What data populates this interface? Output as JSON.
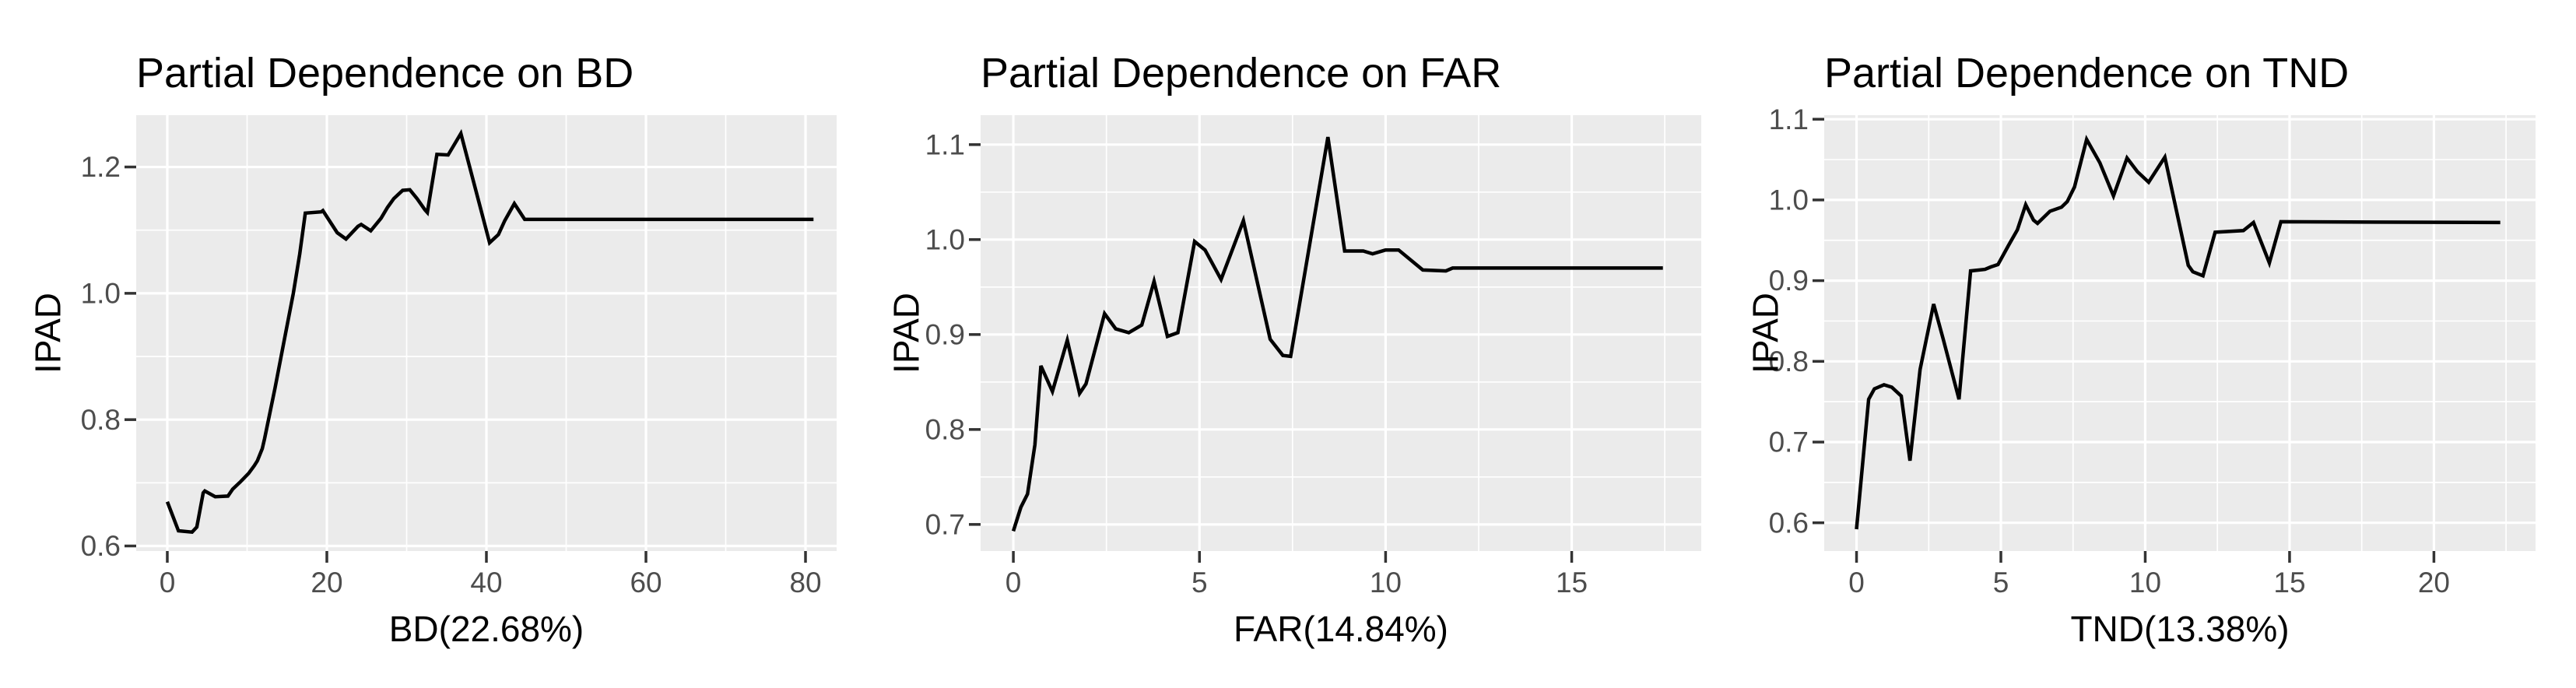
{
  "page": {
    "background": "#FFFFFF"
  },
  "style": {
    "panel_bg": "#EBEBEB",
    "grid_color": "#FFFFFF",
    "line_color": "#000000",
    "tick_color": "#333333",
    "tick_label_color": "#4D4D4D",
    "title_color": "#000000"
  },
  "chart_data": [
    {
      "type": "line",
      "title": "Partial Dependence on BD",
      "xlabel": "BD(22.68%)",
      "ylabel": "IPAD",
      "legend": "none",
      "grid": "on",
      "xlim": [
        -3.9,
        83.9
      ],
      "ylim": [
        0.592,
        1.282
      ],
      "x_ticks": [
        0,
        20,
        40,
        60,
        80
      ],
      "x_tick_labels": [
        "0",
        "20",
        "40",
        "60",
        "80"
      ],
      "x_minor": [
        10,
        30,
        50,
        70
      ],
      "y_ticks": [
        0.6,
        0.8,
        1.0,
        1.2
      ],
      "y_tick_labels": [
        "0.6",
        "0.8",
        "1.0",
        "1.2"
      ],
      "y_minor": [
        0.7,
        0.9,
        1.1
      ],
      "series": [
        {
          "name": "IPAD",
          "points": [
            [
              0,
              0.67
            ],
            [
              1.4,
              0.624
            ],
            [
              3.1,
              0.622
            ],
            [
              3.7,
              0.63
            ],
            [
              4.5,
              0.684
            ],
            [
              4.7,
              0.687
            ],
            [
              6.0,
              0.678
            ],
            [
              7.6,
              0.679
            ],
            [
              8.2,
              0.69
            ],
            [
              9.2,
              0.702
            ],
            [
              10.2,
              0.715
            ],
            [
              10.9,
              0.727
            ],
            [
              11.3,
              0.735
            ],
            [
              11.9,
              0.754
            ],
            [
              12.2,
              0.77
            ],
            [
              13.5,
              0.85
            ],
            [
              14.8,
              0.935
            ],
            [
              15.8,
              1.0
            ],
            [
              16.6,
              1.062
            ],
            [
              17.3,
              1.127
            ],
            [
              19.3,
              1.129
            ],
            [
              19.5,
              1.131
            ],
            [
              21.3,
              1.096
            ],
            [
              22.4,
              1.086
            ],
            [
              23.9,
              1.106
            ],
            [
              24.3,
              1.109
            ],
            [
              25.5,
              1.099
            ],
            [
              26.8,
              1.119
            ],
            [
              27.6,
              1.136
            ],
            [
              28.4,
              1.15
            ],
            [
              29.5,
              1.163
            ],
            [
              30.4,
              1.164
            ],
            [
              31.3,
              1.15
            ],
            [
              32.3,
              1.132
            ],
            [
              32.6,
              1.128
            ],
            [
              33.8,
              1.22
            ],
            [
              35.2,
              1.219
            ],
            [
              36.8,
              1.253
            ],
            [
              40.4,
              1.08
            ],
            [
              41.5,
              1.093
            ],
            [
              42.3,
              1.115
            ],
            [
              43.5,
              1.142
            ],
            [
              44.8,
              1.117
            ],
            [
              60,
              1.117
            ],
            [
              81,
              1.117
            ]
          ]
        }
      ]
    },
    {
      "type": "line",
      "title": "Partial Dependence on FAR",
      "xlabel": "FAR(14.84%)",
      "ylabel": "IPAD",
      "legend": "none",
      "grid": "on",
      "xlim": [
        -0.88,
        18.48
      ],
      "ylim": [
        0.672,
        1.131
      ],
      "x_ticks": [
        0,
        5,
        10,
        15
      ],
      "x_tick_labels": [
        "0",
        "5",
        "10",
        "15"
      ],
      "x_minor": [
        2.5,
        7.5,
        12.5,
        17.5
      ],
      "y_ticks": [
        0.7,
        0.8,
        0.9,
        1.0,
        1.1
      ],
      "y_tick_labels": [
        "0.7",
        "0.8",
        "0.9",
        "1.0",
        "1.1"
      ],
      "y_minor": [
        0.75,
        0.85,
        0.95,
        1.05
      ],
      "series": [
        {
          "name": "IPAD",
          "points": [
            [
              0,
              0.693
            ],
            [
              0.2,
              0.718
            ],
            [
              0.38,
              0.732
            ],
            [
              0.58,
              0.784
            ],
            [
              0.74,
              0.867
            ],
            [
              1.05,
              0.84
            ],
            [
              1.45,
              0.894
            ],
            [
              1.78,
              0.838
            ],
            [
              1.95,
              0.848
            ],
            [
              2.45,
              0.922
            ],
            [
              2.75,
              0.906
            ],
            [
              3.1,
              0.902
            ],
            [
              3.45,
              0.91
            ],
            [
              3.78,
              0.956
            ],
            [
              4.14,
              0.898
            ],
            [
              4.42,
              0.902
            ],
            [
              4.87,
              0.998
            ],
            [
              5.15,
              0.989
            ],
            [
              5.58,
              0.958
            ],
            [
              6.18,
              1.02
            ],
            [
              6.9,
              0.895
            ],
            [
              7.24,
              0.878
            ],
            [
              7.45,
              0.877
            ],
            [
              8.45,
              1.108
            ],
            [
              8.9,
              0.988
            ],
            [
              9.4,
              0.988
            ],
            [
              9.65,
              0.985
            ],
            [
              10.0,
              0.989
            ],
            [
              10.35,
              0.989
            ],
            [
              11.0,
              0.968
            ],
            [
              11.62,
              0.967
            ],
            [
              11.8,
              0.97
            ],
            [
              12.1,
              0.97
            ],
            [
              17.45,
              0.97
            ]
          ]
        }
      ]
    },
    {
      "type": "line",
      "title": "Partial Dependence on TND",
      "xlabel": "TND(13.38%)",
      "ylabel": "IPAD",
      "legend": "none",
      "grid": "on",
      "xlim": [
        -1.12,
        23.52
      ],
      "ylim": [
        0.565,
        1.105
      ],
      "x_ticks": [
        0,
        5,
        10,
        15,
        20
      ],
      "x_tick_labels": [
        "0",
        "5",
        "10",
        "15",
        "20"
      ],
      "x_minor": [
        2.5,
        7.5,
        12.5,
        17.5,
        22.5
      ],
      "y_ticks": [
        0.6,
        0.7,
        0.8,
        0.9,
        1.0,
        1.1
      ],
      "y_tick_labels": [
        "0.6",
        "0.7",
        "0.8",
        "0.9",
        "1.0",
        "1.1"
      ],
      "y_minor": [
        0.65,
        0.75,
        0.85,
        0.95,
        1.05
      ],
      "series": [
        {
          "name": "IPAD",
          "points": [
            [
              0,
              0.592
            ],
            [
              0.42,
              0.753
            ],
            [
              0.62,
              0.766
            ],
            [
              0.95,
              0.771
            ],
            [
              1.22,
              0.768
            ],
            [
              1.55,
              0.757
            ],
            [
              1.85,
              0.677
            ],
            [
              2.2,
              0.79
            ],
            [
              2.67,
              0.871
            ],
            [
              3.0,
              0.828
            ],
            [
              3.55,
              0.753
            ],
            [
              3.95,
              0.912
            ],
            [
              4.45,
              0.914
            ],
            [
              4.65,
              0.917
            ],
            [
              4.9,
              0.92
            ],
            [
              5.27,
              0.944
            ],
            [
              5.57,
              0.963
            ],
            [
              5.86,
              0.994
            ],
            [
              6.13,
              0.975
            ],
            [
              6.27,
              0.971
            ],
            [
              6.7,
              0.986
            ],
            [
              7.1,
              0.991
            ],
            [
              7.3,
              0.998
            ],
            [
              7.55,
              1.016
            ],
            [
              7.97,
              1.075
            ],
            [
              8.43,
              1.046
            ],
            [
              8.9,
              1.005
            ],
            [
              9.37,
              1.052
            ],
            [
              9.73,
              1.035
            ],
            [
              10.12,
              1.022
            ],
            [
              10.68,
              1.053
            ],
            [
              11.49,
              0.919
            ],
            [
              11.65,
              0.911
            ],
            [
              12.0,
              0.906
            ],
            [
              12.42,
              0.96
            ],
            [
              13.4,
              0.962
            ],
            [
              13.75,
              0.972
            ],
            [
              14.3,
              0.922
            ],
            [
              14.7,
              0.973
            ],
            [
              22.3,
              0.972
            ]
          ]
        }
      ]
    }
  ]
}
